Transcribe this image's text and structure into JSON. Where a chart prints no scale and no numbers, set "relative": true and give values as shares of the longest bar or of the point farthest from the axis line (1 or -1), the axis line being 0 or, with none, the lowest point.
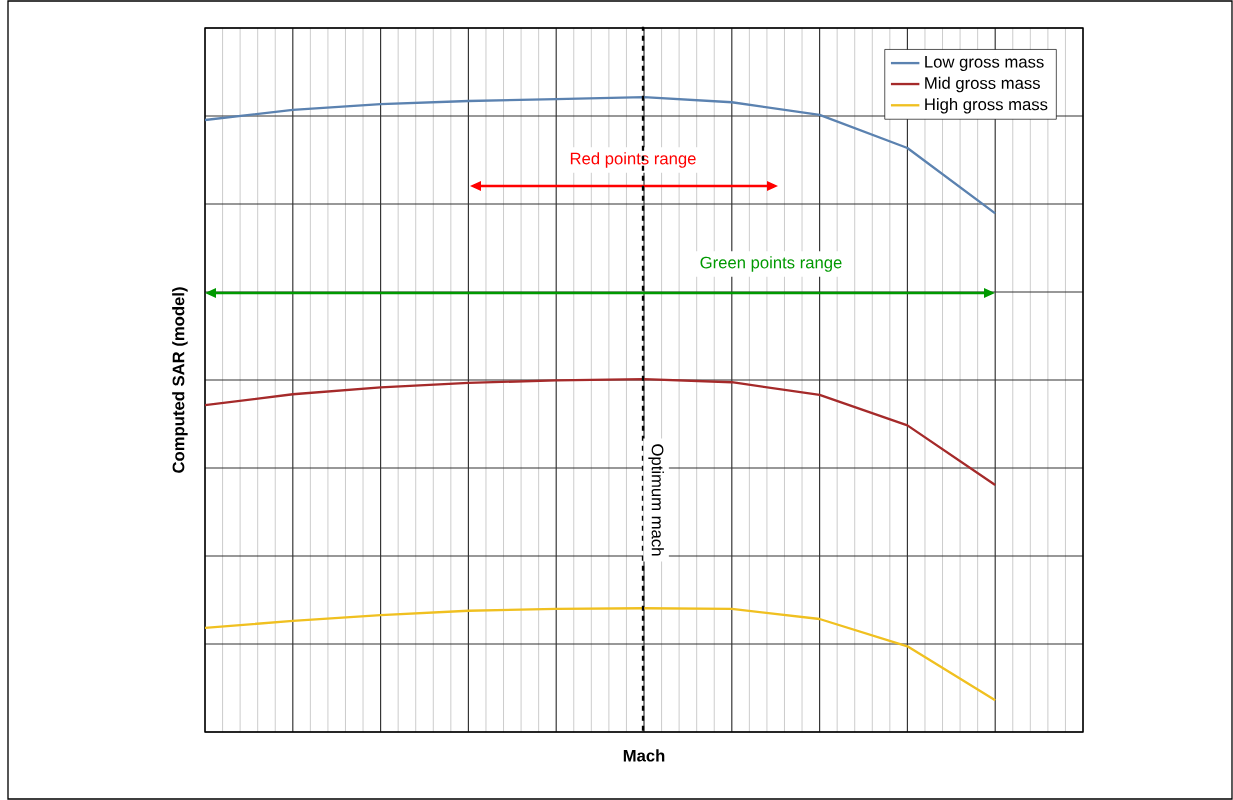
{
  "chart_data": {
    "type": "line",
    "relative": true,
    "xlabel": "Mach",
    "ylabel": "Computed SAR (model)",
    "categories": [
      null,
      null,
      null,
      null,
      null,
      null,
      null,
      null,
      null,
      null
    ],
    "series": [
      {
        "name": "Low gross mass",
        "color": "#5b82b0",
        "values": [
          0.964,
          0.98,
          0.989,
          0.994,
          0.997,
          1,
          0.992,
          0.972,
          0.92,
          0.817
        ]
      },
      {
        "name": "Mid gross mass",
        "color": "#a52a2a",
        "values": [
          0.515,
          0.532,
          0.543,
          0.55,
          0.554,
          0.556,
          0.551,
          0.531,
          0.483,
          0.389
        ]
      },
      {
        "name": "High gross mass",
        "color": "#f0c020",
        "values": [
          0.164,
          0.175,
          0.184,
          0.191,
          0.194,
          0.195,
          0.194,
          0.178,
          0.135,
          0.05
        ]
      }
    ],
    "annotations": [
      "Red points range",
      "Green points range",
      "Optimum mach"
    ],
    "grid": true,
    "legend": "top right",
    "marker": "none",
    "line_style": "solid"
  }
}
